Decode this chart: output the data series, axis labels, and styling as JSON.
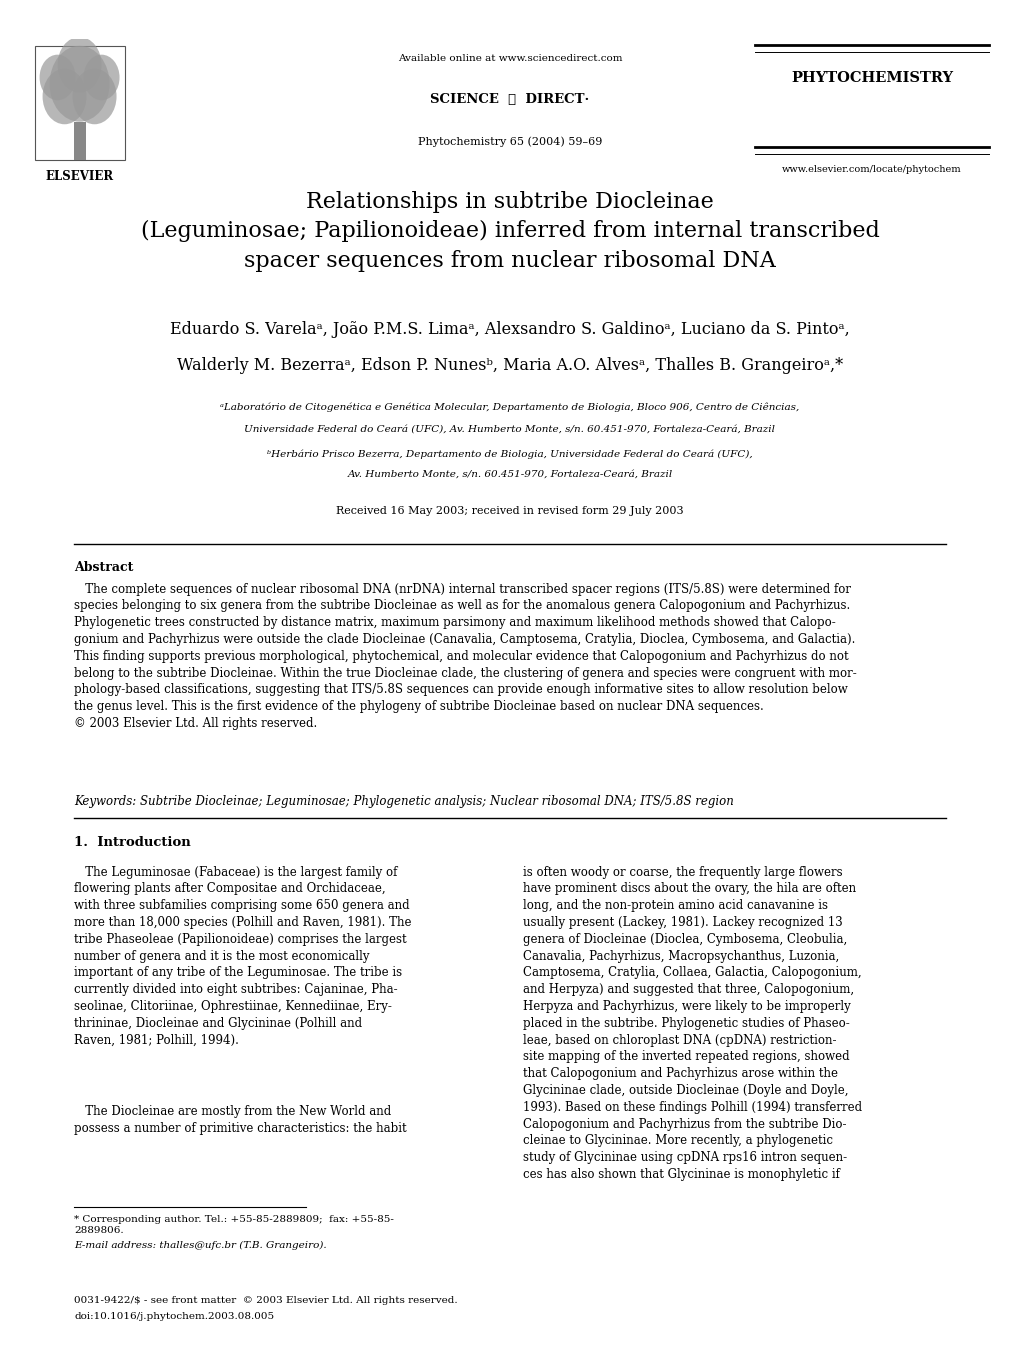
{
  "page_width": 10.2,
  "page_height": 13.61,
  "background_color": "#ffffff",
  "header": {
    "available_online": "Available online at www.sciencedirect.com",
    "journal_name": "PHYTOCHEMISTRY",
    "citation": "Phytochemistry 65 (2004) 59–69",
    "website": "www.elsevier.com/locate/phytochem"
  },
  "title": "Relationships in subtribe Diocleinae\n(Leguminosae; Papilionoideae) inferred from internal transcribed\nspacer sequences from nuclear ribosomal DNA",
  "authors_line1": "Eduardo S. Varelaᵃ, João P.M.S. Limaᵃ, Alexsandro S. Galdinoᵃ, Luciano da S. Pintoᵃ,",
  "authors_line2": "Walderly M. Bezerraᵃ, Edson P. Nunesᵇ, Maria A.O. Alvesᵃ, Thalles B. Grangeiroᵃ,*",
  "affiliation_a": "ᵃLaboratório de Citogenética e Genética Molecular, Departamento de Biologia, Bloco 906, Centro de Ciências,",
  "affiliation_a2": "Universidade Federal do Ceará (UFC), Av. Humberto Monte, s/n. 60.451-970, Fortaleza-Ceará, Brazil",
  "affiliation_b": "ᵇHerbário Prisco Bezerra, Departamento de Biologia, Universidade Federal do Ceará (UFC),",
  "affiliation_b2": "Av. Humberto Monte, s/n. 60.451-970, Fortaleza-Ceará, Brazil",
  "received": "Received 16 May 2003; received in revised form 29 July 2003",
  "abstract_title": "Abstract",
  "abstract_indent": "   The complete sequences of nuclear ribosomal DNA (nrDNA) internal transcribed spacer regions (ITS/5.8S) were determined for\nspecies belonging to six genera from the subtribe Diocleinae as well as for the anomalous genera Calopogonium and Pachyrhizus.\nPhylogenetic trees constructed by distance matrix, maximum parsimony and maximum likelihood methods showed that Calopo-\ngonium and Pachyrhizus were outside the clade Diocleinae (Canavalia, Camptosema, Cratylia, Dioclea, Cymbosema, and Galactia).\nThis finding supports previous morphological, phytochemical, and molecular evidence that Calopogonium and Pachyrhizus do not\nbelong to the subtribe Diocleinae. Within the true Diocleinae clade, the clustering of genera and species were congruent with mor-\nphology-based classifications, suggesting that ITS/5.8S sequences can provide enough informative sites to allow resolution below\nthe genus level. This is the first evidence of the phylogeny of subtribe Diocleinae based on nuclear DNA sequences.\n© 2003 Elsevier Ltd. All rights reserved.",
  "keywords": "Keywords: Subtribe Diocleinae; Leguminosae; Phylogenetic analysis; Nuclear ribosomal DNA; ITS/5.8S region",
  "intro_title": "1.  Introduction",
  "intro_col1_para1": "   The Leguminosae (Fabaceae) is the largest family of\nflowering plants after Compositae and Orchidaceae,\nwith three subfamilies comprising some 650 genera and\nmore than 18,000 species (Polhill and Raven, 1981). The\ntribe Phaseoleae (Papilionoideae) comprises the largest\nnumber of genera and it is the most economically\nimportant of any tribe of the Leguminosae. The tribe is\ncurrently divided into eight subtribes: Cajaninae, Pha-\nseolinae, Clitoriinae, Ophrestiinae, Kennediinae, Ery-\nthrininae, Diocleinae and Glycininae (Polhill and\nRaven, 1981; Polhill, 1994).",
  "intro_col1_para2": "   The Diocleinae are mostly from the New World and\npossess a number of primitive characteristics: the habit",
  "intro_col2_para1": "is often woody or coarse, the frequently large flowers\nhave prominent discs about the ovary, the hila are often\nlong, and the non-protein amino acid canavanine is\nusually present (Lackey, 1981). Lackey recognized 13\ngenera of Diocleinae (Dioclea, Cymbosema, Cleobulia,\nCanavalia, Pachyrhizus, Macropsychanthus, Luzonia,\nCamptosema, Cratylia, Collaea, Galactia, Calopogonium,\nand Herpyza) and suggested that three, Calopogonium,\nHerpyza and Pachyrhizus, were likely to be improperly\nplaced in the subtribe. Phylogenetic studies of Phaseo-\nleae, based on chloroplast DNA (cpDNA) restriction-\nsite mapping of the inverted repeated regions, showed\nthat Calopogonium and Pachyrhizus arose within the\nGlycininae clade, outside Diocleinae (Doyle and Doyle,\n1993). Based on these findings Polhill (1994) transferred\nCalopogonium and Pachyrhizus from the subtribe Dio-\ncleinae to Glycininae. More recently, a phylogenetic\nstudy of Glycininae using cpDNA rps16 intron sequen-\nces has also shown that Glycininae is monophyletic if",
  "footnote_line": "* Corresponding author. Tel.: +55-85-2889809;  fax: +55-85-\n2889806.",
  "footnote_email": "E-mail address: thalles@ufc.br (T.B. Grangeiro).",
  "footer_line1": "0031-9422/$ - see front matter  © 2003 Elsevier Ltd. All rights reserved.",
  "footer_line2": "doi:10.1016/j.phytochem.2003.08.005"
}
